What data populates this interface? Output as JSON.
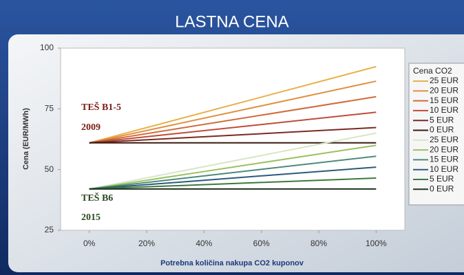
{
  "chart_data": {
    "type": "line",
    "title": "LASTNA CENA",
    "y_label": "Cena (EUR/MWh)",
    "x_label": "Potrebna količina nakupa CO2 kuponov",
    "legend_title": "Cena CO2",
    "annotations": [
      {
        "text": "TEŠ B1-5",
        "color": "#7a2018"
      },
      {
        "text": "2009",
        "color": "#7a2018"
      },
      {
        "text": "TEŠ B6",
        "color": "#2a4a20"
      },
      {
        "text": "2015",
        "color": "#2a4a20"
      }
    ],
    "x": [
      0,
      100
    ],
    "xlim": [
      -10,
      110
    ],
    "xticks": [
      {
        "value": 0,
        "label": "0%"
      },
      {
        "value": 20,
        "label": "20%"
      },
      {
        "value": 40,
        "label": "40%"
      },
      {
        "value": 60,
        "label": "60%"
      },
      {
        "value": 80,
        "label": "80%"
      },
      {
        "value": 100,
        "label": "100%"
      }
    ],
    "ylim": [
      25,
      100
    ],
    "yticks": [
      25,
      50,
      75,
      100
    ],
    "grid": false,
    "series": [
      {
        "name": "25 EUR",
        "color": "#e8b04a",
        "values": [
          61,
          92.4
        ]
      },
      {
        "name": "20 EUR",
        "color": "#e09040",
        "values": [
          61,
          86.4
        ]
      },
      {
        "name": "15 EUR",
        "color": "#d06a3a",
        "values": [
          61,
          80
        ]
      },
      {
        "name": "10 EUR",
        "color": "#c04a38",
        "values": [
          61,
          73.6
        ]
      },
      {
        "name": "5 EUR",
        "color": "#7a2a20",
        "values": [
          61,
          67.3
        ]
      },
      {
        "name": "0 EUR",
        "color": "#3a1a10",
        "values": [
          61,
          61
        ]
      },
      {
        "name": "25 EUR",
        "color": "#d6e6c6",
        "values": [
          42,
          65
        ]
      },
      {
        "name": "20 EUR",
        "color": "#9bc060",
        "values": [
          42,
          60
        ]
      },
      {
        "name": "15 EUR",
        "color": "#4a8a7a",
        "values": [
          42,
          55.5
        ]
      },
      {
        "name": "10 EUR",
        "color": "#2a5a7a",
        "values": [
          42,
          51
        ]
      },
      {
        "name": "5 EUR",
        "color": "#3a7a3a",
        "values": [
          42,
          46.5
        ]
      },
      {
        "name": "0 EUR",
        "color": "#203020",
        "values": [
          42,
          42
        ]
      }
    ]
  }
}
